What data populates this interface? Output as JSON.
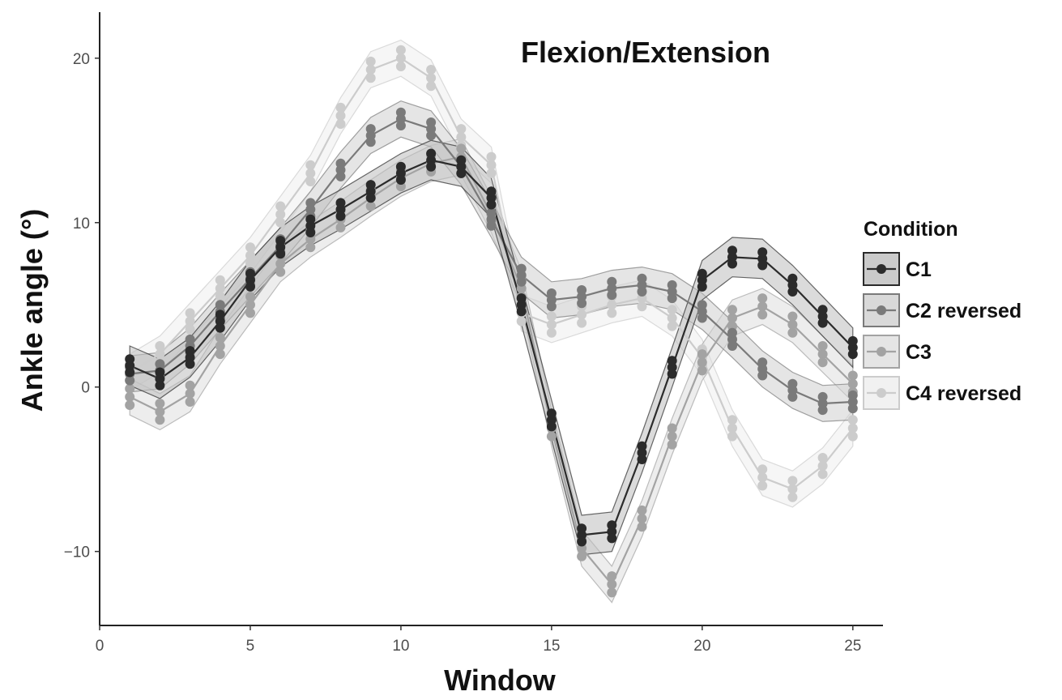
{
  "chart_data": {
    "type": "line",
    "title": "Flexion/Extension",
    "xlabel": "Window",
    "ylabel": "Ankle angle (°)",
    "xlim": [
      0,
      26
    ],
    "ylim": [
      -14.5,
      22.8
    ],
    "xticks": [
      0,
      5,
      10,
      15,
      20,
      25
    ],
    "yticks": [
      -10,
      0,
      10,
      20
    ],
    "grid": false,
    "legend_title": "Condition",
    "legend_position": "right",
    "x": [
      1,
      2,
      3,
      4,
      5,
      6,
      7,
      8,
      9,
      10,
      11,
      12,
      13,
      14,
      15,
      16,
      17,
      18,
      19,
      20,
      21,
      22,
      23,
      24,
      25
    ],
    "series": [
      {
        "name": "C1",
        "color": "#2b2b2b",
        "band": "#bdbdbd",
        "values": [
          1.3,
          0.5,
          1.8,
          4.0,
          6.5,
          8.5,
          9.8,
          10.8,
          11.9,
          13.0,
          13.8,
          13.4,
          11.5,
          5.0,
          -2.0,
          -9.0,
          -8.8,
          -4.0,
          1.2,
          6.5,
          7.9,
          7.8,
          6.2,
          4.3,
          2.4
        ],
        "band_width": 1.2,
        "points_offsets": [
          -0.4,
          0.4
        ]
      },
      {
        "name": "C2 reversed",
        "color": "#7a7a7a",
        "band": "#cfcfcf",
        "values": [
          0.8,
          1.0,
          2.5,
          4.6,
          6.6,
          8.6,
          10.8,
          13.2,
          15.3,
          16.3,
          15.7,
          13.4,
          10.2,
          6.8,
          5.3,
          5.5,
          6.0,
          6.2,
          5.8,
          4.6,
          2.9,
          1.1,
          -0.2,
          -1.0,
          -0.9
        ],
        "band_width": 1.1,
        "points_offsets": [
          -0.4,
          0.4
        ]
      },
      {
        "name": "C3",
        "color": "#a3a3a3",
        "band": "#dedede",
        "values": [
          -0.6,
          -1.5,
          -0.4,
          2.5,
          5.0,
          7.5,
          9.0,
          10.2,
          11.5,
          12.7,
          13.6,
          14.0,
          10.5,
          6.0,
          -2.5,
          -9.8,
          -12.0,
          -8.0,
          -3.0,
          1.5,
          4.2,
          4.9,
          3.8,
          2.0,
          0.2
        ],
        "band_width": 1.1,
        "points_offsets": [
          -0.5,
          0.5
        ]
      },
      {
        "name": "C4 reversed",
        "color": "#cccccc",
        "band": "#eeeeee",
        "values": [
          0.9,
          2.0,
          4.0,
          6.0,
          8.0,
          10.5,
          13.0,
          16.5,
          19.3,
          20.0,
          18.8,
          15.2,
          13.5,
          4.5,
          3.8,
          4.4,
          5.0,
          5.4,
          4.2,
          1.8,
          -2.5,
          -5.5,
          -6.2,
          -4.8,
          -2.5
        ],
        "band_width": 1.1,
        "points_offsets": [
          -0.5,
          0.5
        ]
      }
    ]
  }
}
